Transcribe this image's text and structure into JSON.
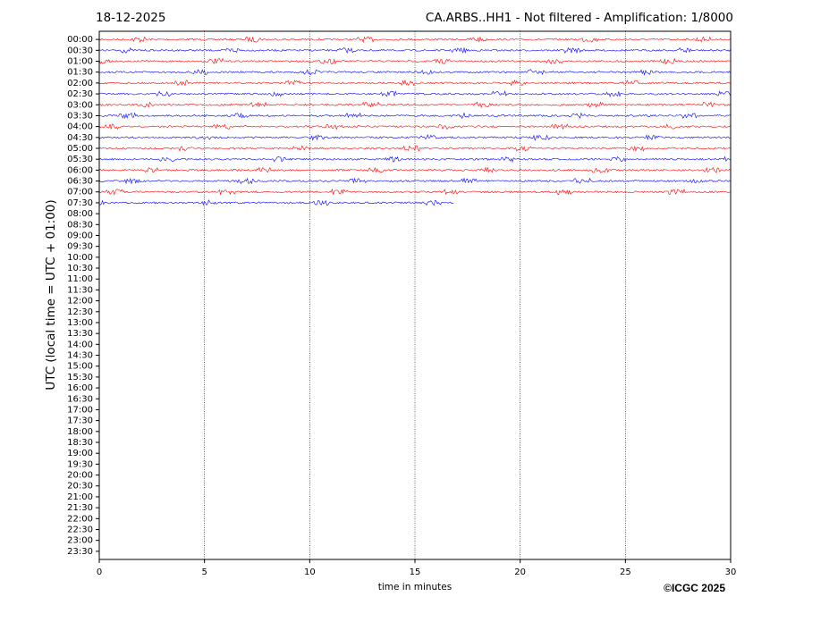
{
  "chart_data": {
    "type": "helicorder",
    "date": "18-12-2025",
    "title": "CA.ARBS..HH1 - Not filtered - Amplification: 1/8000",
    "ylabel": "UTC (local time = UTC + 01:00)",
    "xlabel": "time in minutes",
    "credit": "©ICGC 2025",
    "xlim": [
      0,
      30
    ],
    "xticks": [
      0,
      5,
      10,
      15,
      20,
      25,
      30
    ],
    "grid": true,
    "ylim": [
      -0.75,
      47.75
    ],
    "yticks": [
      {
        "value": 0,
        "label": "00:00"
      },
      {
        "value": 1,
        "label": "00:30"
      },
      {
        "value": 2,
        "label": "01:00"
      },
      {
        "value": 3,
        "label": "01:30"
      },
      {
        "value": 4,
        "label": "02:00"
      },
      {
        "value": 5,
        "label": "02:30"
      },
      {
        "value": 6,
        "label": "03:00"
      },
      {
        "value": 7,
        "label": "03:30"
      },
      {
        "value": 8,
        "label": "04:00"
      },
      {
        "value": 9,
        "label": "04:30"
      },
      {
        "value": 10,
        "label": "05:00"
      },
      {
        "value": 11,
        "label": "05:30"
      },
      {
        "value": 12,
        "label": "06:00"
      },
      {
        "value": 13,
        "label": "06:30"
      },
      {
        "value": 14,
        "label": "07:00"
      },
      {
        "value": 15,
        "label": "07:30"
      },
      {
        "value": 16,
        "label": "08:00"
      },
      {
        "value": 17,
        "label": "08:30"
      },
      {
        "value": 18,
        "label": "09:00"
      },
      {
        "value": 19,
        "label": "09:30"
      },
      {
        "value": 20,
        "label": "10:00"
      },
      {
        "value": 21,
        "label": "10:30"
      },
      {
        "value": 22,
        "label": "11:00"
      },
      {
        "value": 23,
        "label": "11:30"
      },
      {
        "value": 24,
        "label": "12:00"
      },
      {
        "value": 25,
        "label": "12:30"
      },
      {
        "value": 26,
        "label": "13:00"
      },
      {
        "value": 27,
        "label": "13:30"
      },
      {
        "value": 28,
        "label": "14:00"
      },
      {
        "value": 29,
        "label": "14:30"
      },
      {
        "value": 30,
        "label": "15:00"
      },
      {
        "value": 31,
        "label": "15:30"
      },
      {
        "value": 32,
        "label": "16:00"
      },
      {
        "value": 33,
        "label": "16:30"
      },
      {
        "value": 34,
        "label": "17:00"
      },
      {
        "value": 35,
        "label": "17:30"
      },
      {
        "value": 36,
        "label": "18:00"
      },
      {
        "value": 37,
        "label": "18:30"
      },
      {
        "value": 38,
        "label": "19:00"
      },
      {
        "value": 39,
        "label": "19:30"
      },
      {
        "value": 40,
        "label": "20:00"
      },
      {
        "value": 41,
        "label": "20:30"
      },
      {
        "value": 42,
        "label": "21:00"
      },
      {
        "value": 43,
        "label": "21:30"
      },
      {
        "value": 44,
        "label": "22:00"
      },
      {
        "value": 45,
        "label": "22:30"
      },
      {
        "value": 46,
        "label": "23:00"
      },
      {
        "value": 47,
        "label": "23:30"
      }
    ],
    "trace_ends": [
      30,
      30,
      30,
      30,
      30,
      30,
      30,
      30,
      30,
      30,
      30,
      30,
      30,
      30,
      30,
      16.85
    ],
    "colors": [
      "#ff0000",
      "#0000ff"
    ]
  }
}
